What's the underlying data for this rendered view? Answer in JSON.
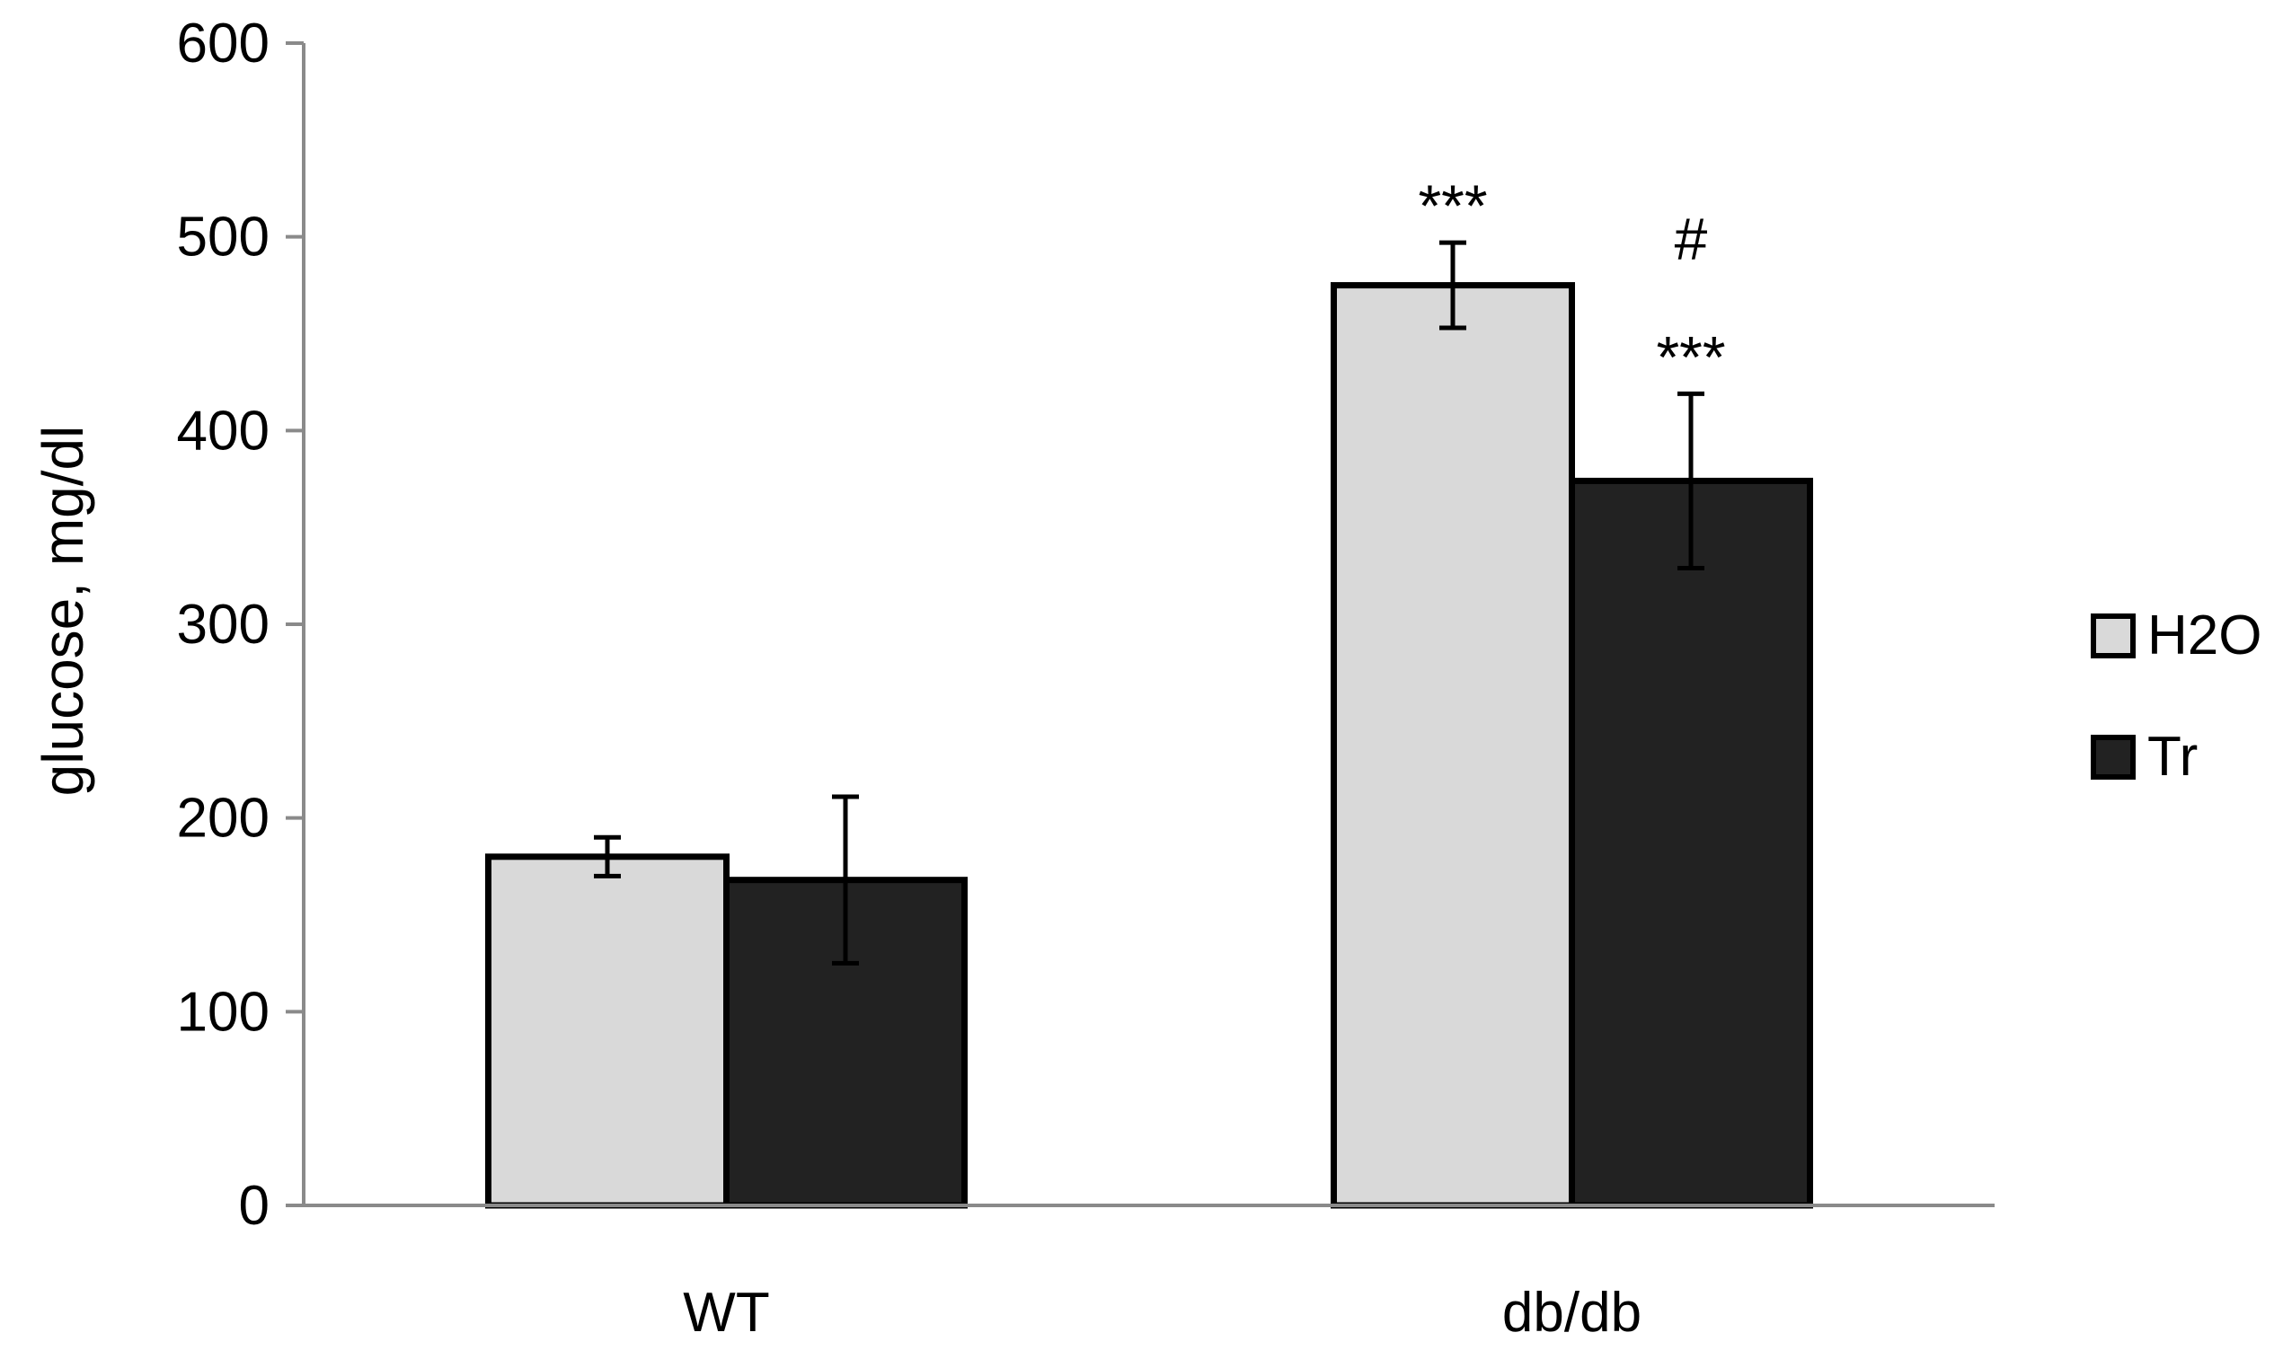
{
  "chart_data": {
    "type": "bar",
    "title": "",
    "xlabel": "",
    "ylabel": "glucose, mg/dl",
    "ylim": [
      0,
      600
    ],
    "yticks": [
      "0",
      "100",
      "200",
      "300",
      "400",
      "500",
      "600"
    ],
    "categories": [
      "WT",
      "db/db"
    ],
    "series": [
      {
        "name": "H2O",
        "color": "#d9d9d9",
        "values": [
          180,
          475
        ],
        "errors": [
          10,
          22
        ],
        "annotations": [
          "",
          "***"
        ]
      },
      {
        "name": "Tr",
        "color": "#222222",
        "values": [
          168,
          374
        ],
        "errors": [
          43,
          45
        ],
        "annotations": [
          "",
          "***"
        ]
      }
    ],
    "extra_annotations": [
      {
        "category": 1,
        "series": 1,
        "text": "#"
      }
    ],
    "legend": "right"
  }
}
